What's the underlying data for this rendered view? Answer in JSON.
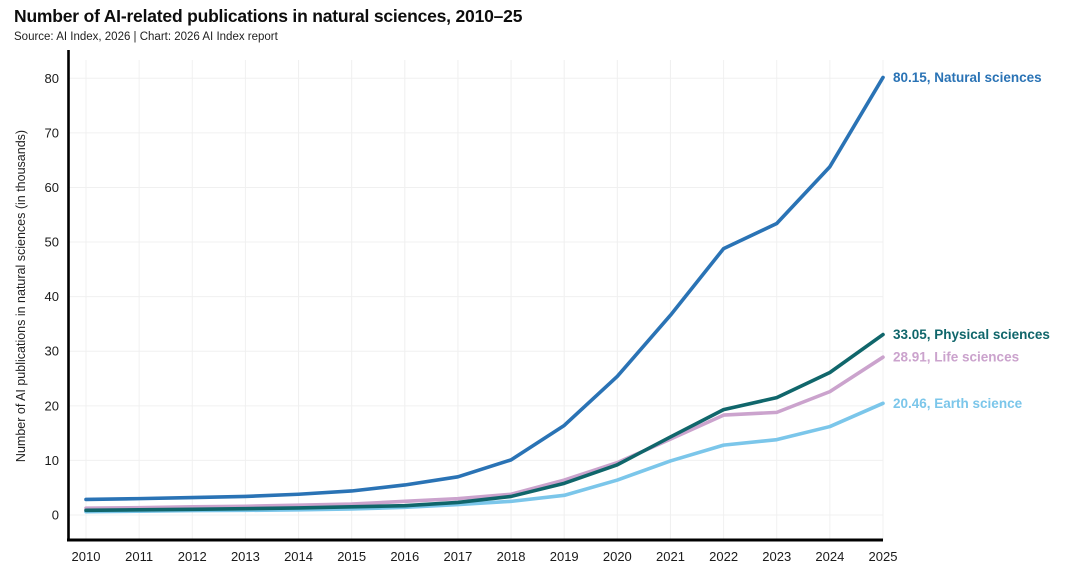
{
  "header": {
    "title": "Number of AI-related publications in natural sciences, 2010–25",
    "source": "Source: AI Index, 2026 | Chart: 2026 AI Index report"
  },
  "chart_data": {
    "type": "line",
    "title": "Number of AI-related publications in natural sciences, 2010–25",
    "xlabel": "",
    "ylabel": "Number of AI publications in natural sciences (in thousands)",
    "x": [
      2010,
      2011,
      2012,
      2013,
      2014,
      2015,
      2016,
      2017,
      2018,
      2019,
      2020,
      2021,
      2022,
      2023,
      2024,
      2025
    ],
    "x_tick_labels": [
      "2010",
      "2011",
      "2012",
      "2013",
      "2014",
      "2015",
      "2016",
      "2017",
      "2018",
      "2019",
      "2020",
      "2021",
      "2022",
      "2023",
      "2024",
      "2025"
    ],
    "yticks": [
      0,
      10,
      20,
      30,
      40,
      50,
      60,
      70,
      80
    ],
    "ylim": [
      0,
      80
    ],
    "grid": true,
    "legend_position": "right-end-labels",
    "axis_color": "#000000",
    "gridline_color": "#f0f0f0",
    "series": [
      {
        "name": "Natural sciences",
        "color": "#2a73b5",
        "end_label": "80.15, Natural sciences",
        "values": [
          2.85,
          3.0,
          3.2,
          3.4,
          3.8,
          4.4,
          5.5,
          7.0,
          10.1,
          16.4,
          25.4,
          36.6,
          48.8,
          53.4,
          63.8,
          80.15
        ]
      },
      {
        "name": "Physical sciences",
        "color": "#10666b",
        "end_label": "33.05, Physical sciences",
        "values": [
          0.85,
          0.95,
          1.05,
          1.15,
          1.3,
          1.5,
          1.7,
          2.3,
          3.4,
          5.8,
          9.2,
          14.3,
          19.3,
          21.5,
          26.1,
          33.05
        ]
      },
      {
        "name": "Life sciences",
        "color": "#cba3cd",
        "end_label": "28.91, Life sciences",
        "values": [
          1.25,
          1.35,
          1.5,
          1.6,
          1.8,
          2.0,
          2.5,
          3.0,
          3.8,
          6.4,
          9.6,
          13.9,
          18.3,
          18.8,
          22.6,
          28.91
        ]
      },
      {
        "name": "Earth science",
        "color": "#7bc6ea",
        "end_label": "20.46, Earth science",
        "values": [
          0.6,
          0.7,
          0.8,
          0.85,
          0.95,
          1.1,
          1.4,
          1.9,
          2.5,
          3.6,
          6.4,
          9.9,
          12.8,
          13.8,
          16.2,
          20.46
        ]
      }
    ]
  }
}
